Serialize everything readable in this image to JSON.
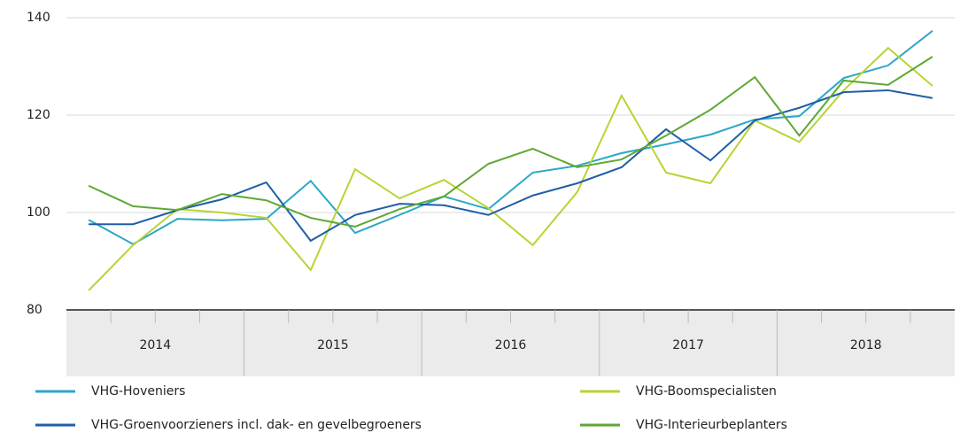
{
  "chart_data": {
    "type": "line",
    "categories": [
      null,
      null,
      null,
      null,
      null,
      null,
      null,
      null,
      null,
      null,
      null,
      null,
      null,
      null,
      null,
      null,
      null,
      null,
      null,
      null
    ],
    "groups": [
      "2014",
      "2015",
      "2016",
      "2017",
      "2018"
    ],
    "ylim": [
      80,
      140
    ],
    "yticks": [
      80,
      100,
      120,
      140
    ],
    "grid": true,
    "legend": "bottom",
    "series": [
      {
        "name": "VHG-Hoveniers",
        "color": "#2aa7c9",
        "values": [
          98.5,
          93.5,
          98.7,
          98.4,
          98.7,
          106.5,
          95.8,
          99.5,
          103.3,
          100.7,
          108.2,
          109.6,
          112.2,
          114,
          116,
          119.1,
          119.8,
          127.6,
          130.2,
          137.3
        ]
      },
      {
        "name": "VHG-Boomspecialisten",
        "color": "#b8d433",
        "values": [
          84,
          93.3,
          100.7,
          100,
          98.9,
          88.2,
          108.9,
          102.9,
          106.7,
          100.9,
          93.3,
          104.2,
          124,
          108.2,
          106,
          118.9,
          114.5,
          125.1,
          133.8,
          126
        ]
      },
      {
        "name": "VHG-Groenvoorzieners incl. dak- en gevelbegroeners",
        "color": "#1f5ea8",
        "values": [
          97.6,
          97.6,
          100.5,
          102.7,
          106.2,
          94.2,
          99.5,
          101.8,
          101.5,
          99.5,
          103.5,
          106,
          109.3,
          117.1,
          110.7,
          118.9,
          121.5,
          124.7,
          125.1,
          123.5
        ]
      },
      {
        "name": "VHG-Interieurbeplanters",
        "color": "#5ea832",
        "values": [
          105.5,
          101.3,
          100.5,
          103.8,
          102.5,
          98.9,
          97.1,
          100.7,
          103.3,
          110,
          113.1,
          109.3,
          110.9,
          115.8,
          121.1,
          127.8,
          115.8,
          127.1,
          126.2,
          132
        ]
      }
    ]
  }
}
